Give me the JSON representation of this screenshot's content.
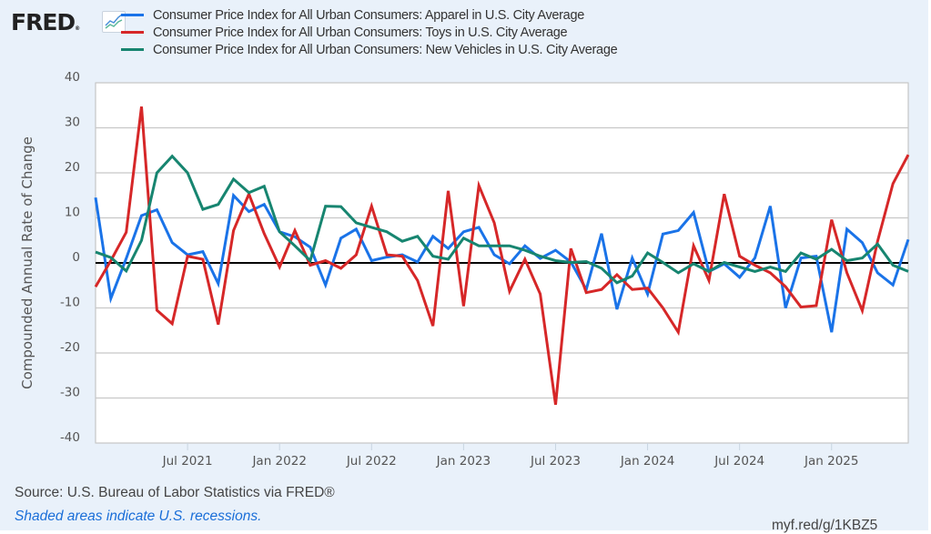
{
  "header": {
    "logo_text": "FRED",
    "logo_reg": "®",
    "logo_icon": "line-chart-icon"
  },
  "legend": [
    {
      "label": "Consumer Price Index for All Urban Consumers: Apparel in U.S. City Average",
      "color": "#1a73e8"
    },
    {
      "label": "Consumer Price Index for All Urban Consumers: Toys in U.S. City Average",
      "color": "#d62728"
    },
    {
      "label": "Consumer Price Index for All Urban Consumers: New Vehicles in U.S. City Average",
      "color": "#178570"
    }
  ],
  "footer": {
    "source": "Source: U.S. Bureau of Labor Statistics via FRED®",
    "recession_note": "Shaded areas indicate U.S. recessions.",
    "short_url": "myf.red/g/1KBZ5"
  },
  "chart_data": {
    "type": "line",
    "title": "",
    "xlabel": "",
    "ylabel": "Compounded Annual Rate of Change",
    "ylim": [
      -40,
      40
    ],
    "yticks": [
      40,
      30,
      20,
      10,
      0,
      -10,
      -20,
      -30,
      -40
    ],
    "grid": true,
    "legend_position": "top",
    "x_start": "2021-01",
    "x_end": "2025-06",
    "frequency": "monthly",
    "xtick_labels": [
      {
        "label": "Jul 2021",
        "index": 6
      },
      {
        "label": "Jan 2022",
        "index": 12
      },
      {
        "label": "Jul 2022",
        "index": 18
      },
      {
        "label": "Jan 2023",
        "index": 24
      },
      {
        "label": "Jul 2023",
        "index": 30
      },
      {
        "label": "Jan 2024",
        "index": 36
      },
      {
        "label": "Jul 2024",
        "index": 42
      },
      {
        "label": "Jan 2025",
        "index": 48
      }
    ],
    "series": [
      {
        "name": "Consumer Price Index for All Urban Consumers: Apparel in U.S. City Average",
        "color": "#1a73e8",
        "values": [
          14.5,
          -7.9,
          1.0,
          10.5,
          11.8,
          4.5,
          1.8,
          2.5,
          -4.6,
          15.0,
          11.4,
          13.0,
          6.9,
          5.8,
          3.5,
          -4.9,
          5.5,
          7.5,
          0.5,
          1.3,
          1.8,
          0.2,
          5.9,
          3.2,
          6.9,
          7.9,
          1.8,
          -0.2,
          3.8,
          1.0,
          2.8,
          0.2,
          -5.9,
          6.5,
          -10.3,
          1.1,
          -6.9,
          6.4,
          7.2,
          11.2,
          -1.9,
          -0.2,
          -3.2,
          1.1,
          12.6,
          -10.0,
          1.1,
          1.5,
          -15.4,
          7.5,
          4.5,
          -2.2,
          -4.9,
          5.2
        ]
      },
      {
        "name": "Consumer Price Index for All Urban Consumers: Toys in U.S. City Average",
        "color": "#d62728",
        "values": [
          -5.3,
          0.5,
          6.8,
          34.7,
          -10.5,
          -13.5,
          1.5,
          0.8,
          -13.7,
          7.2,
          15.3,
          6.5,
          -0.9,
          7.2,
          -0.5,
          0.5,
          -1.2,
          1.8,
          12.6,
          1.8,
          1.5,
          -3.9,
          -14.0,
          16.0,
          -9.6,
          17.2,
          8.9,
          -6.3,
          0.8,
          -6.9,
          -31.5,
          3.2,
          -6.6,
          -5.9,
          -2.6,
          -5.9,
          -5.6,
          -10.0,
          -15.4,
          3.8,
          -3.9,
          15.3,
          1.5,
          -0.5,
          -2.2,
          -5.3,
          -9.8,
          -9.5,
          9.6,
          -2.2,
          -10.6,
          4.8,
          17.6,
          24.0
        ]
      },
      {
        "name": "Consumer Price Index for All Urban Consumers: New Vehicles in U.S. City Average",
        "color": "#178570",
        "values": [
          2.4,
          1.2,
          -1.8,
          5.0,
          20.0,
          23.7,
          20.0,
          11.9,
          13.0,
          18.6,
          15.6,
          17.0,
          6.9,
          3.8,
          0.5,
          12.6,
          12.5,
          8.9,
          7.9,
          6.9,
          4.8,
          5.9,
          1.5,
          0.8,
          5.5,
          3.8,
          3.8,
          3.8,
          2.8,
          1.5,
          0.5,
          0.1,
          0.3,
          -1.2,
          -4.4,
          -2.9,
          2.2,
          0.1,
          -2.2,
          -0.2,
          -1.9,
          0.1,
          -0.9,
          -1.9,
          -0.9,
          -1.9,
          2.2,
          0.8,
          3.0,
          0.5,
          1.1,
          4.2,
          -0.5,
          -1.9
        ]
      }
    ]
  }
}
